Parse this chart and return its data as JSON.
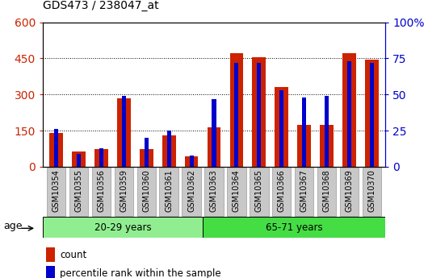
{
  "title": "GDS473 / 238047_at",
  "categories": [
    "GSM10354",
    "GSM10355",
    "GSM10356",
    "GSM10359",
    "GSM10360",
    "GSM10361",
    "GSM10362",
    "GSM10363",
    "GSM10364",
    "GSM10365",
    "GSM10366",
    "GSM10367",
    "GSM10368",
    "GSM10369",
    "GSM10370"
  ],
  "count": [
    140,
    65,
    75,
    285,
    75,
    130,
    45,
    165,
    470,
    455,
    330,
    175,
    175,
    470,
    445
  ],
  "percentile": [
    26,
    9,
    13,
    49,
    20,
    25,
    8,
    47,
    72,
    72,
    53,
    48,
    49,
    73,
    72
  ],
  "group1_label": "20-29 years",
  "group1_count": 7,
  "group2_label": "65-71 years",
  "group2_count": 8,
  "age_label": "age",
  "legend1": "count",
  "legend2": "percentile rank within the sample",
  "left_ylim": [
    0,
    600
  ],
  "right_ylim": [
    0,
    100
  ],
  "left_yticks": [
    0,
    150,
    300,
    450,
    600
  ],
  "right_yticks": [
    0,
    25,
    50,
    75,
    100
  ],
  "right_yticklabels": [
    "0",
    "25",
    "50",
    "75",
    "100%"
  ],
  "bar_color": "#cc2200",
  "percentile_color": "#0000cc",
  "bg_color": "#c8c8c8",
  "group1_bg": "#90ee90",
  "group2_bg": "#44dd44",
  "plot_bg": "#ffffff",
  "grid_color": "#000000"
}
